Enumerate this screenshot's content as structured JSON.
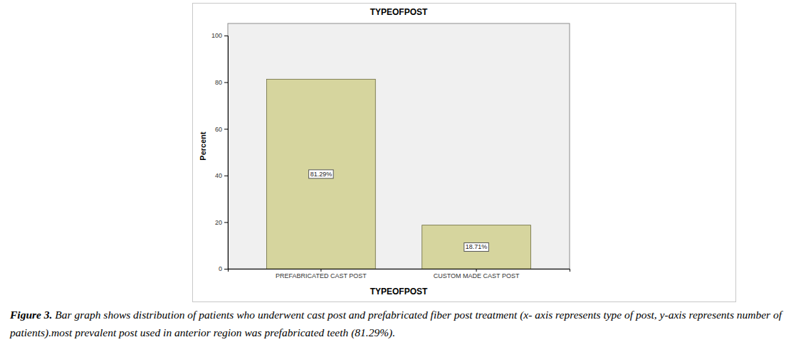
{
  "chart_data": {
    "type": "bar",
    "title": "TYPEOFPOST",
    "x_label": "TYPEOFPOST",
    "y_label": "Percent",
    "categories": [
      "PREFABRICATED CAST POST",
      "CUSTOM MADE CAST POST"
    ],
    "values": [
      81.29,
      18.71
    ],
    "value_labels": [
      "81.29%",
      "18.71%"
    ],
    "data_labels": true,
    "color": "#d6d59e",
    "ylim": [
      0,
      100
    ],
    "yticks": [
      0,
      20,
      40,
      60,
      80,
      100
    ],
    "grid": false
  },
  "caption": {
    "label": "Figure 3.",
    "text": "Bar graph shows distribution of patients who underwent cast post and prefabricated fiber post treatment (x- axis represents type of post, y-axis represents number of patients).most prevalent post used in anterior region was prefabricated teeth (81.29%)."
  }
}
